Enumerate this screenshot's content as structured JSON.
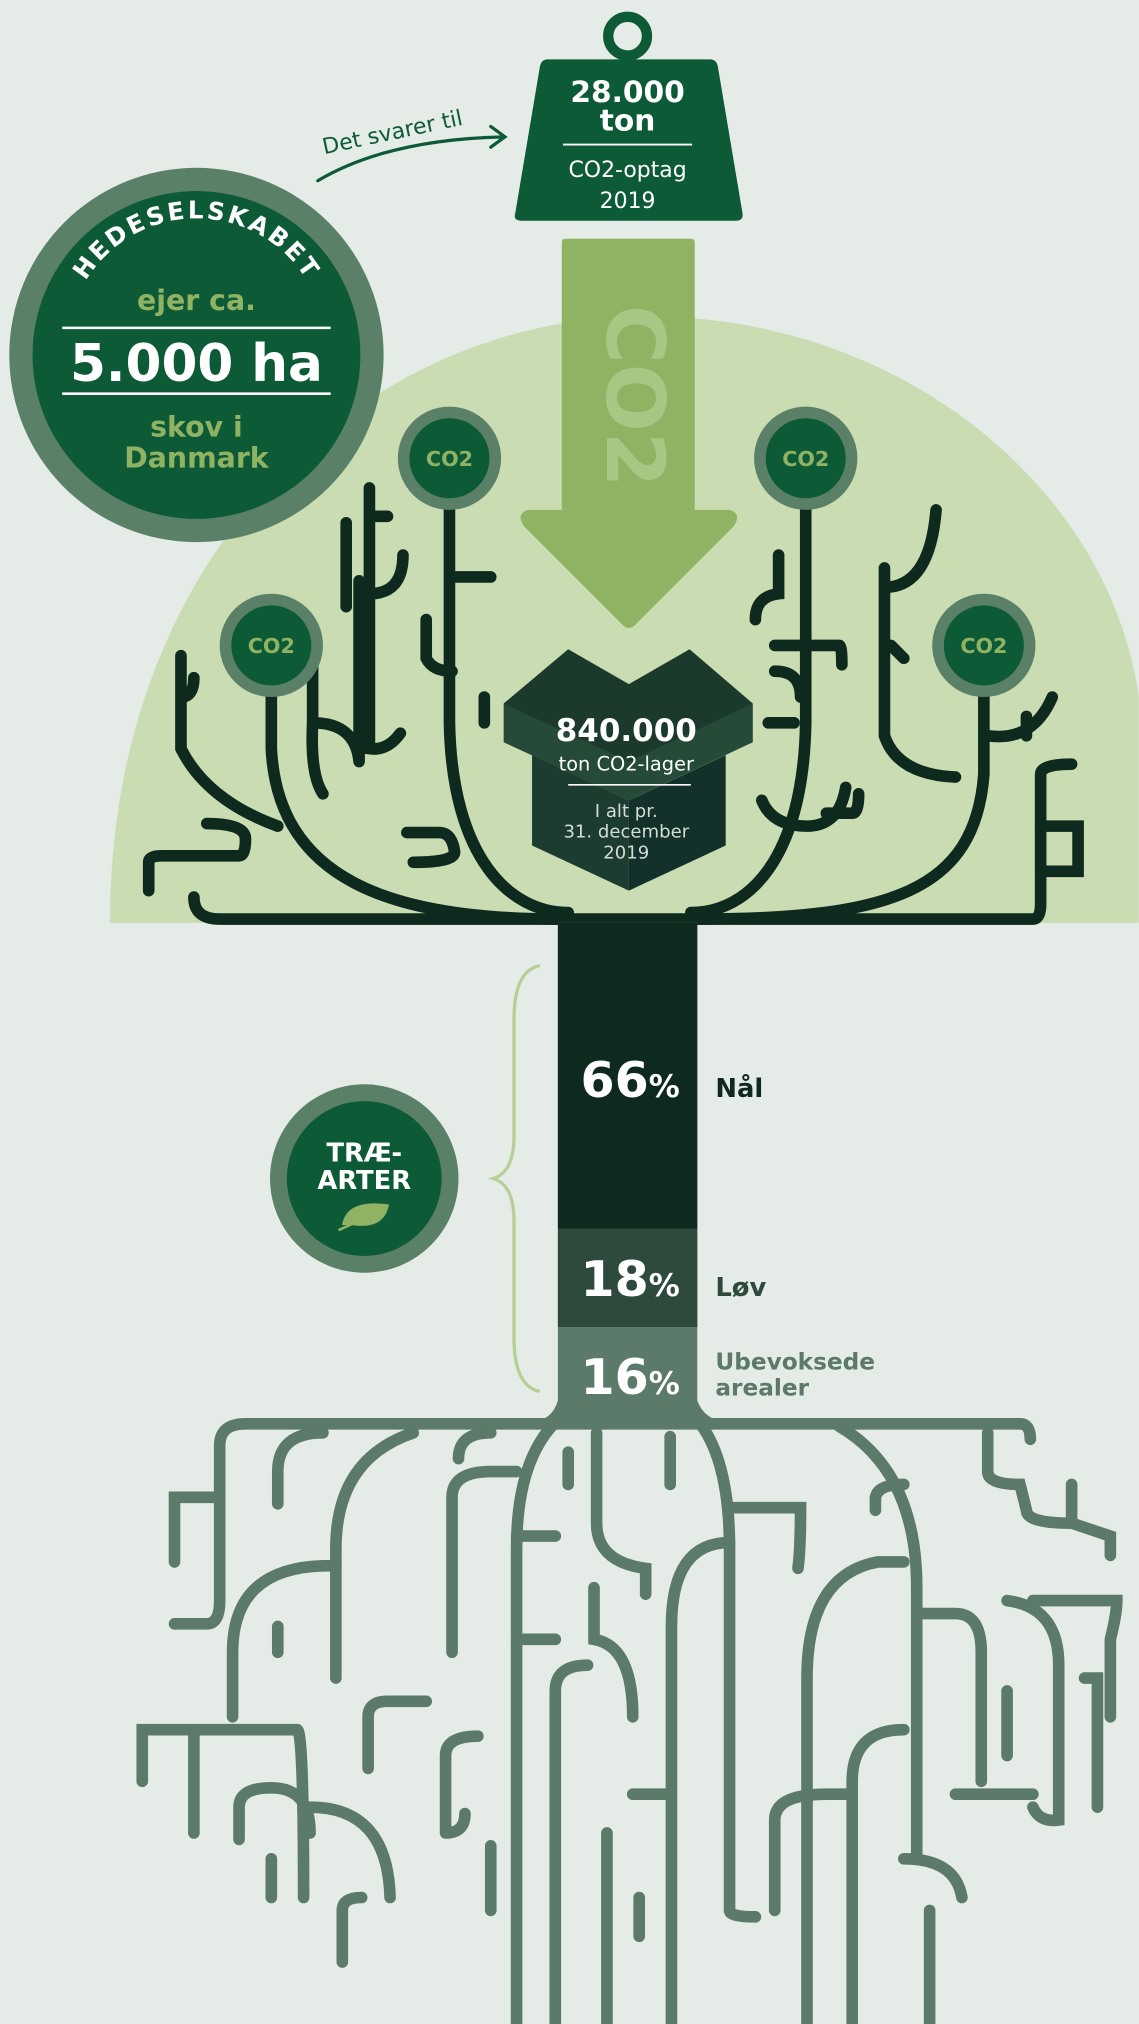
{
  "weight": {
    "amount": "28.000",
    "unit": "ton",
    "label": "CO2-optag",
    "year": "2019"
  },
  "arrow_note": "Det svarer til",
  "badge": {
    "arc_text": "HEDESELSKABET",
    "line1": "ejer ca.",
    "area": "5.000 ha",
    "line2": "skov i",
    "line3": "Danmark"
  },
  "arrow_label": "CO2",
  "co2_circles": [
    "CO2",
    "CO2",
    "CO2",
    "CO2"
  ],
  "box": {
    "amount": "840.000",
    "unit": "ton CO2-lager",
    "note": [
      "I alt pr.",
      "31. december",
      "2019"
    ]
  },
  "species": {
    "title": [
      "TRÆ-",
      "ARTER"
    ],
    "segments": [
      {
        "value": "66",
        "unit": "%",
        "label": [
          "Nål"
        ]
      },
      {
        "value": "18",
        "unit": "%",
        "label": [
          "Løv"
        ]
      },
      {
        "value": "16",
        "unit": "%",
        "label": [
          "Ubevoksede",
          "arealer"
        ]
      }
    ]
  }
}
